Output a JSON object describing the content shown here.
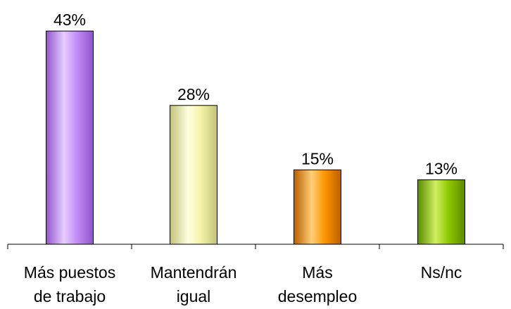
{
  "chart_data": {
    "type": "bar",
    "categories": [
      [
        "Más puestos",
        "de trabajo"
      ],
      [
        "Mantendrán",
        "igual"
      ],
      [
        "Más",
        "desempleo"
      ],
      [
        "Ns/nc"
      ]
    ],
    "values": [
      43,
      28,
      15,
      13
    ],
    "value_labels": [
      "43%",
      "28%",
      "15%",
      "13%"
    ],
    "unit": "%",
    "ylim": [
      0,
      45
    ],
    "grid": false,
    "legend": "none",
    "bar_colors": [
      {
        "light": "#e8ccff",
        "mid": "#c28df7",
        "dark": "#8e55c9"
      },
      {
        "light": "#fefee2",
        "mid": "#f4f4a8",
        "dark": "#c2c27a"
      },
      {
        "light": "#ffcf78",
        "mid": "#ff9500",
        "dark": "#b95f00"
      },
      {
        "light": "#cff060",
        "mid": "#8fc800",
        "dark": "#5b8a00"
      }
    ],
    "axis_color": "#000000",
    "bar_outline_color": "#000000"
  }
}
